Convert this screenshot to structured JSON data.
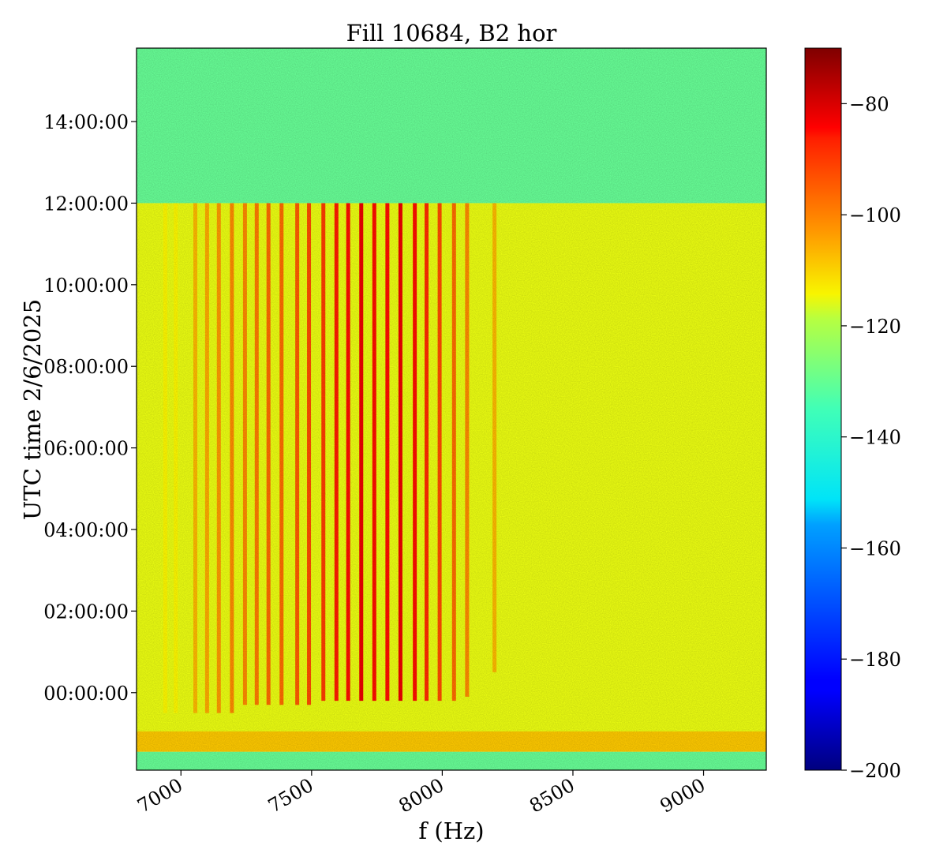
{
  "chart_data": {
    "type": "heatmap",
    "title": "Fill 10684, B2 hor",
    "xlabel": "f (Hz)",
    "ylabel": "UTC time 2/6/2025",
    "xlim": [
      6830,
      9240
    ],
    "x_ticks": [
      7000,
      7500,
      8000,
      8500,
      9000
    ],
    "x_tick_labels": [
      "7000",
      "7500",
      "8000",
      "8500",
      "9000"
    ],
    "ylim_hours": [
      -1.9,
      15.8
    ],
    "y_tick_labels": [
      "00:00:00",
      "02:00:00",
      "04:00:00",
      "06:00:00",
      "08:00:00",
      "10:00:00",
      "12:00:00",
      "14:00:00"
    ],
    "y_tick_hours": [
      0,
      2,
      4,
      6,
      8,
      10,
      12,
      14
    ],
    "colorbar": {
      "colormap": "jet",
      "range": [
        -200,
        -70
      ],
      "tick_values": [
        -80,
        -100,
        -120,
        -140,
        -160,
        -180,
        -200
      ],
      "tick_labels": [
        "−80",
        "−100",
        "−120",
        "−140",
        "−160",
        "−180",
        "−200"
      ]
    },
    "regions": [
      {
        "name": "background",
        "y_range_hours": [
          12.0,
          15.8
        ],
        "level_db": -138
      },
      {
        "name": "beam",
        "y_range_hours": [
          -1.45,
          12.0
        ],
        "level_db": -121
      },
      {
        "name": "broadband band",
        "y_range_hours": [
          -1.45,
          -0.95
        ],
        "level_db": -112
      },
      {
        "name": "bottom background",
        "y_range_hours": [
          -1.9,
          -1.45
        ],
        "level_db": -138
      }
    ],
    "spectral_lines": [
      {
        "f_hz": 6940,
        "start_hours": -0.5,
        "level_db": -118
      },
      {
        "f_hz": 6980,
        "start_hours": -0.5,
        "level_db": -118
      },
      {
        "f_hz": 7055,
        "start_hours": -0.5,
        "level_db": -110
      },
      {
        "f_hz": 7100,
        "start_hours": -0.5,
        "level_db": -108
      },
      {
        "f_hz": 7145,
        "start_hours": -0.5,
        "level_db": -106
      },
      {
        "f_hz": 7195,
        "start_hours": -0.5,
        "level_db": -104
      },
      {
        "f_hz": 7245,
        "start_hours": -0.3,
        "level_db": -104
      },
      {
        "f_hz": 7290,
        "start_hours": -0.3,
        "level_db": -102
      },
      {
        "f_hz": 7335,
        "start_hours": -0.3,
        "level_db": -100
      },
      {
        "f_hz": 7385,
        "start_hours": -0.3,
        "level_db": -100
      },
      {
        "f_hz": 7445,
        "start_hours": -0.3,
        "level_db": -98
      },
      {
        "f_hz": 7490,
        "start_hours": -0.3,
        "level_db": -96
      },
      {
        "f_hz": 7545,
        "start_hours": -0.2,
        "level_db": -94
      },
      {
        "f_hz": 7595,
        "start_hours": -0.2,
        "level_db": -90
      },
      {
        "f_hz": 7640,
        "start_hours": -0.2,
        "level_db": -88
      },
      {
        "f_hz": 7690,
        "start_hours": -0.2,
        "level_db": -84
      },
      {
        "f_hz": 7740,
        "start_hours": -0.2,
        "level_db": -88
      },
      {
        "f_hz": 7790,
        "start_hours": -0.2,
        "level_db": -88
      },
      {
        "f_hz": 7840,
        "start_hours": -0.2,
        "level_db": -84
      },
      {
        "f_hz": 7895,
        "start_hours": -0.2,
        "level_db": -88
      },
      {
        "f_hz": 7940,
        "start_hours": -0.2,
        "level_db": -92
      },
      {
        "f_hz": 7990,
        "start_hours": -0.2,
        "level_db": -96
      },
      {
        "f_hz": 8045,
        "start_hours": -0.2,
        "level_db": -100
      },
      {
        "f_hz": 8095,
        "start_hours": -0.1,
        "level_db": -104
      },
      {
        "f_hz": 8200,
        "start_hours": 0.5,
        "level_db": -110
      }
    ]
  }
}
